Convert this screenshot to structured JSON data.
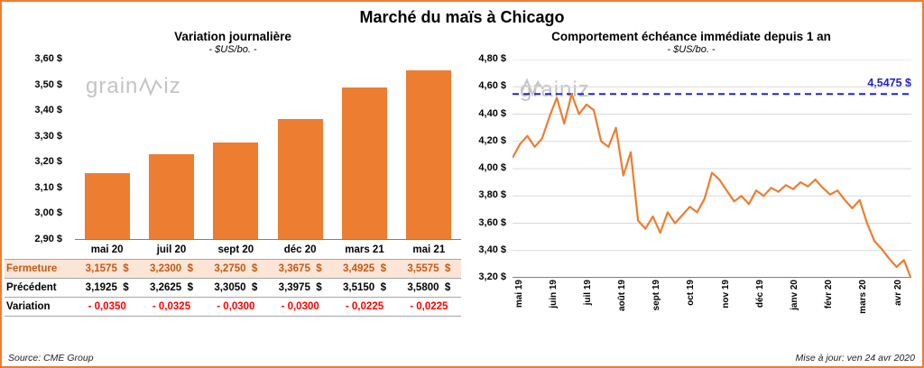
{
  "page": {
    "title": "Marché du maïs à Chicago",
    "source": "Source: CME Group",
    "updated": "Mise à jour: ven 24 avr 2020"
  },
  "watermark": {
    "prefix": "grain",
    "suffix": "iz"
  },
  "colors": {
    "accent_orange": "#ED7D31",
    "blue": "#2222CC",
    "red": "#FF0000",
    "peach": "#FBE5D6",
    "table_orange_text": "#C55A11",
    "grid": "#D9D9D9",
    "axis": "#7f7f7f"
  },
  "chart_data": [
    {
      "type": "bar",
      "title": "Variation journalière",
      "subtitle": "- $US/bo. -",
      "categories": [
        "mai 20",
        "juil 20",
        "sept 20",
        "déc 20",
        "mars 21",
        "mai 21"
      ],
      "values": [
        3.1575,
        3.23,
        3.275,
        3.3675,
        3.4925,
        3.5575
      ],
      "ylim": [
        2.9,
        3.6
      ],
      "ytick_labels": [
        "3,60 $",
        "3,50 $",
        "3,40 $",
        "3,30 $",
        "3,20 $",
        "3,10 $",
        "3,00 $",
        "2,90 $"
      ],
      "bar_color": "#ED7D31",
      "grid": false,
      "legend": "none"
    },
    {
      "type": "line",
      "title": "Comportement échéance immédiate depuis 1 an",
      "subtitle": "- $US/bo. -",
      "x_labels": [
        "mai 19",
        "juin 19",
        "juil 19",
        "août 19",
        "sept 19",
        "oct 19",
        "nov 19",
        "déc 19",
        "janv 20",
        "févr 20",
        "mars 20",
        "avr 20"
      ],
      "values": [
        4.08,
        4.18,
        4.24,
        4.16,
        4.22,
        4.38,
        4.52,
        4.33,
        4.5475,
        4.4,
        4.47,
        4.43,
        4.2,
        4.16,
        4.3,
        3.95,
        4.12,
        3.62,
        3.56,
        3.65,
        3.53,
        3.68,
        3.6,
        3.66,
        3.72,
        3.68,
        3.78,
        3.97,
        3.92,
        3.84,
        3.76,
        3.8,
        3.74,
        3.84,
        3.8,
        3.86,
        3.83,
        3.88,
        3.85,
        3.9,
        3.87,
        3.92,
        3.86,
        3.81,
        3.84,
        3.77,
        3.71,
        3.77,
        3.6,
        3.47,
        3.41,
        3.34,
        3.28,
        3.33,
        3.19
      ],
      "ylim": [
        3.2,
        4.8
      ],
      "ytick_labels": [
        "4,80 $",
        "4,60 $",
        "4,40 $",
        "4,20 $",
        "4,00 $",
        "3,80 $",
        "3,60 $",
        "3,40 $",
        "3,20 $"
      ],
      "line_color": "#ED7D31",
      "grid": true,
      "legend": "none",
      "reference_line": {
        "value": 4.5475,
        "label": "4,5475 $",
        "color": "#2222CC",
        "style": "dashed"
      }
    }
  ],
  "price_table": {
    "rows": [
      {
        "label": "Fermeture",
        "style": "fermeture",
        "values": [
          "3,1575  $",
          "3,2300  $",
          "3,2750  $",
          "3,3675  $",
          "3,4925  $",
          "3,5575  $"
        ]
      },
      {
        "label": "Précédent",
        "style": "precedent",
        "values": [
          "3,1925  $",
          "3,2625  $",
          "3,3050  $",
          "3,3975  $",
          "3,5150  $",
          "3,5800  $"
        ]
      },
      {
        "label": "Variation",
        "style": "variation",
        "values": [
          "- 0,0350",
          "- 0,0325",
          "- 0,0300",
          "- 0,0300",
          "- 0,0225",
          "- 0,0225"
        ]
      }
    ]
  }
}
